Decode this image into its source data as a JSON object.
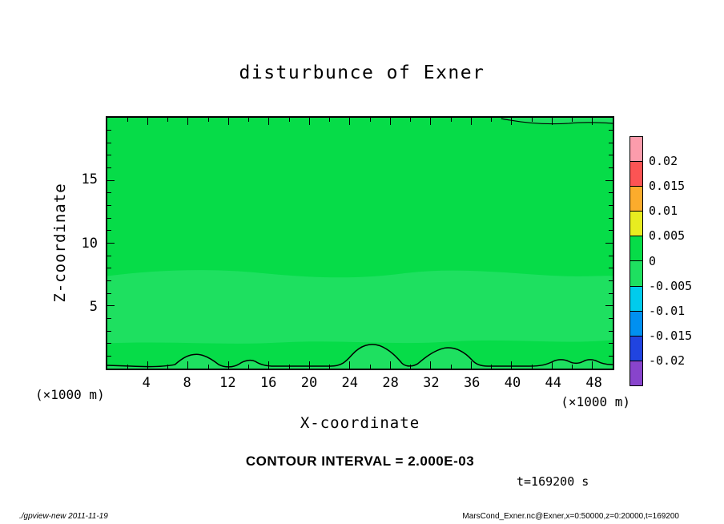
{
  "title": "disturbunce of Exner",
  "axes": {
    "x": {
      "label": "X-coordinate",
      "unit": "(×1000 m)",
      "min": 0,
      "max": 50,
      "tick_minor": 2,
      "tick_major": 4,
      "tick_labels": [
        "4",
        "8",
        "12",
        "16",
        "20",
        "24",
        "28",
        "32",
        "36",
        "40",
        "44",
        "48"
      ]
    },
    "z": {
      "label": "Z-coordinate",
      "unit": "(×1000 m)",
      "min": 0,
      "max": 20,
      "tick_minor": 1,
      "tick_major": 5,
      "tick_labels": [
        "5",
        "10",
        "15"
      ]
    }
  },
  "colorbar": {
    "labels": [
      "0.02",
      "0.015",
      "0.01",
      "0.005",
      "0",
      "-0.005",
      "-0.01",
      "-0.015",
      "-0.02"
    ],
    "colors": [
      "#fc9cac",
      "#fc5454",
      "#fcac2c",
      "#e8ec20",
      "#06dc48",
      "#1ee060",
      "#00ccec",
      "#0090f0",
      "#2044e0",
      "#8844cc"
    ]
  },
  "annotations": {
    "contour_interval": "CONTOUR INTERVAL = 2.000E-03",
    "time": "t=169200 s"
  },
  "footer": {
    "left": "./gpview-new  2011-11-19",
    "right": "MarsCond_Exner.nc@Exner,x=0:50000,z=0:20000,t=169200"
  },
  "chart_data": {
    "type": "heatmap",
    "title": "disturbunce of Exner",
    "xlabel": "X-coordinate",
    "ylabel": "Z-coordinate",
    "x_unit": "(×1000 m)",
    "y_unit": "(×1000 m)",
    "xlim": [
      0,
      50
    ],
    "ylim": [
      0,
      20
    ],
    "x_ticks": [
      4,
      8,
      12,
      16,
      20,
      24,
      28,
      32,
      36,
      40,
      44,
      48
    ],
    "y_ticks": [
      5,
      10,
      15
    ],
    "grid": false,
    "colorbar_position": "right",
    "levels": [
      0.02,
      0.015,
      0.01,
      0.005,
      0,
      -0.005,
      -0.01,
      -0.015,
      -0.02
    ],
    "level_colors": [
      "#fc9cac",
      "#fc5454",
      "#fcac2c",
      "#e8ec20",
      "#06dc48",
      "#1ee060",
      "#00ccec",
      "#0090f0",
      "#2044e0",
      "#8844cc"
    ],
    "contour_interval": 0.002,
    "time_seconds": 169200,
    "field_colors": {
      "main": "#06dc48",
      "band": "#1ee060",
      "contour": "#000000"
    },
    "field_description": "Exner-function disturbance stays within ±0.005 over the whole section: most of the domain lies in the 0 to 0.005 shading band; a subtle band near z≈2–7.5 (×1000 m) and thin near-surface pockets lie in the -0.005 to 0 band. Black zero contours form small arches along the surface near x≈9, 14, 26, 33.5, 45 and 48 (×1000 m), and a weak contour runs just below the model top for x≈39–50."
  }
}
